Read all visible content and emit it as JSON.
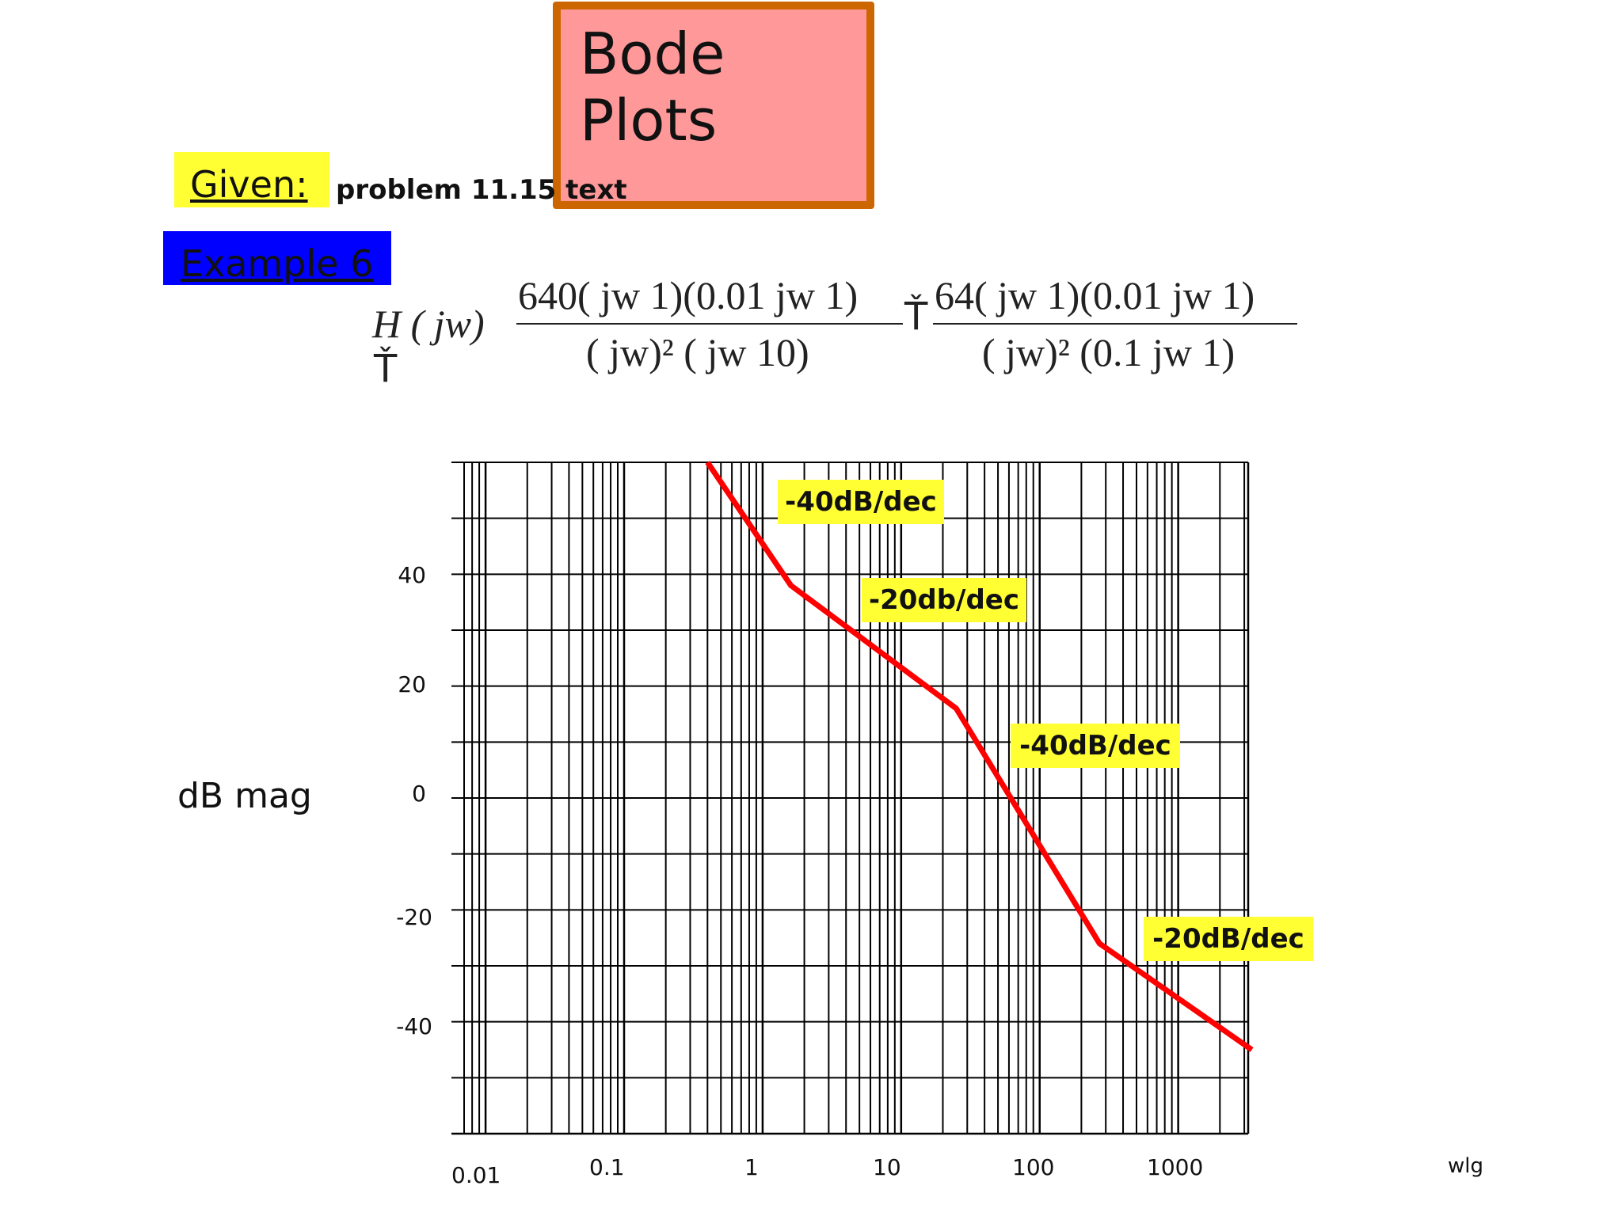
{
  "slide": {
    "title": "Bode Plots",
    "given_label": "Given:",
    "given_note": "problem 11.15 text",
    "example_label": "Example 6"
  },
  "equation": {
    "lhs": "H ( jw)",
    "equals_symbol": "Ť",
    "lhs_symbol": "Ť",
    "frac1_num": "640( jw  1)(0.01 jw  1)",
    "frac1_den": "( jw)² ( jw  10)",
    "frac2_num": "64( jw  1)(0.01 jw  1)",
    "frac2_den": "( jw)² (0.1 jw  1)"
  },
  "chart_data": {
    "type": "line",
    "title": "",
    "xlabel": "wlg",
    "ylabel": "dB mag",
    "xscale": "log",
    "xlim": [
      0.007,
      3200
    ],
    "ylim": [
      -60,
      60
    ],
    "x_tick_labels": [
      "0.01",
      "0.1",
      "1",
      "10",
      "100",
      "1000"
    ],
    "y_tick_labels": [
      "40",
      "20",
      "0",
      "-20",
      "-40"
    ],
    "grid": true,
    "series": [
      {
        "color": "#ff0000",
        "x": [
          0.4,
          1.6,
          25,
          270,
          3400
        ],
        "y": [
          60,
          38,
          16,
          -26,
          -45
        ]
      }
    ],
    "annotations": [
      {
        "text": "-40dB/dec"
      },
      {
        "text": "-20db/dec"
      },
      {
        "text": "-40dB/dec"
      },
      {
        "text": "-20dB/dec"
      }
    ]
  }
}
